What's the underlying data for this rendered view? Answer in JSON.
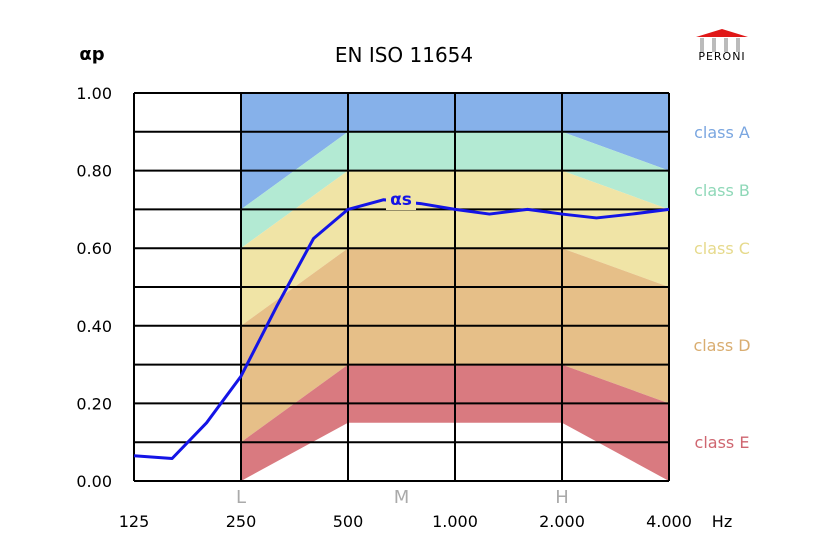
{
  "chart_data": {
    "type": "line",
    "title": "EN ISO 11654",
    "ylabel": "αp",
    "xunit": "Hz",
    "ylim": [
      0,
      1
    ],
    "y_ticks": [
      "0.00",
      "0.20",
      "0.40",
      "0.60",
      "0.80",
      "1.00"
    ],
    "x_ticks": [
      "125",
      "250",
      "500",
      "1.000",
      "2.000",
      "4.000"
    ],
    "band_letters": [
      {
        "label": "L",
        "at": "250"
      },
      {
        "label": "M",
        "at": "500-1000"
      },
      {
        "label": "H",
        "at": "2000"
      }
    ],
    "grid": true,
    "log_x": true,
    "series": [
      {
        "name": "αs",
        "color": "#1414e6",
        "x": [
          125,
          160,
          200,
          250,
          315,
          400,
          500,
          630,
          800,
          1000,
          1250,
          1600,
          2000,
          2500,
          3150,
          4000
        ],
        "y": [
          0.065,
          0.058,
          0.15,
          0.27,
          0.45,
          0.625,
          0.7,
          0.725,
          0.715,
          0.7,
          0.688,
          0.7,
          0.688,
          0.678,
          0.688,
          0.7
        ]
      }
    ],
    "classes": [
      {
        "label": "class A",
        "color": "#86b1ea",
        "lower": {
          "250": 0.7,
          "500": 0.9,
          "2000": 0.9,
          "4000": 0.8
        },
        "upper": {
          "250": 1.0,
          "500": 1.0,
          "2000": 1.0,
          "4000": 1.0
        }
      },
      {
        "label": "class B",
        "color": "#b3ead3",
        "lower": {
          "250": 0.6,
          "500": 0.8,
          "2000": 0.8,
          "4000": 0.7
        }
      },
      {
        "label": "class C",
        "color": "#f0e4a6",
        "lower": {
          "250": 0.4,
          "500": 0.6,
          "2000": 0.6,
          "4000": 0.5
        }
      },
      {
        "label": "class D",
        "color": "#e6bf88",
        "lower": {
          "250": 0.1,
          "500": 0.3,
          "2000": 0.3,
          "4000": 0.2
        }
      },
      {
        "label": "class E",
        "color": "#d97a80",
        "lower": {
          "250": 0.0,
          "500": 0.15,
          "2000": 0.15,
          "4000": 0.0
        }
      }
    ],
    "class_label_colors": [
      "#7aa6e0",
      "#8fd8b8",
      "#e6da8c",
      "#d9ad70",
      "#cf6670"
    ]
  },
  "logo": {
    "text": "PERONI",
    "roof_color": "#e01818"
  }
}
